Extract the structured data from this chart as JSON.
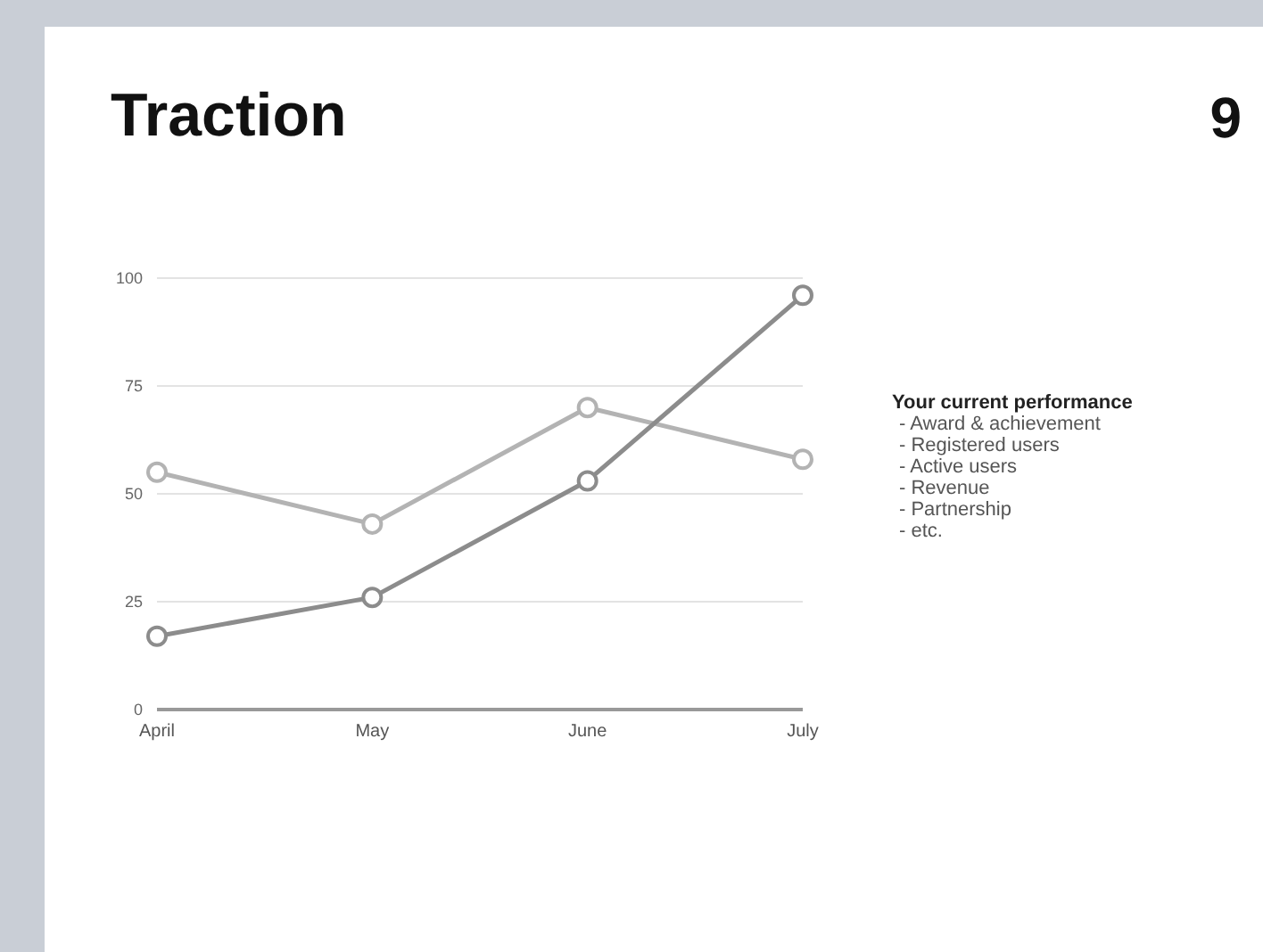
{
  "chart_data": {
    "type": "line",
    "title": "Traction",
    "categories": [
      "April",
      "May",
      "June",
      "July"
    ],
    "series": [
      {
        "color": "#b3b3b3",
        "values": [
          55,
          43,
          70,
          58
        ]
      },
      {
        "color": "#8c8c8c",
        "values": [
          17,
          26,
          53,
          96
        ]
      }
    ],
    "ylim": [
      0,
      100
    ],
    "yticks": [
      0,
      25,
      50,
      75,
      100
    ],
    "grid": "y",
    "marker": "circle",
    "line_style": "solid",
    "annotations": [
      "9",
      "Your current performance",
      "- Award & achievement",
      "- Registered users",
      "- Active users",
      "- Revenue",
      "- Partnership",
      "- etc."
    ]
  }
}
